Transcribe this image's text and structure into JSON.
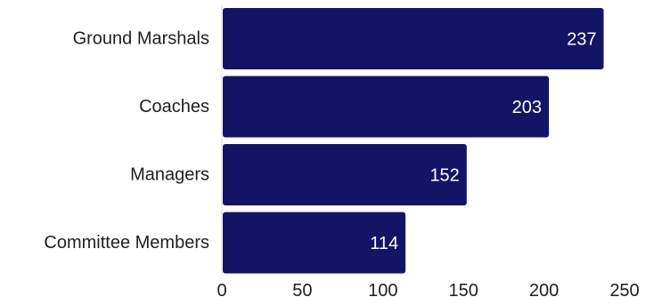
{
  "chart_data": {
    "type": "bar",
    "orientation": "horizontal",
    "categories": [
      "Ground Marshals",
      "Coaches",
      "Managers",
      "Committee Members"
    ],
    "values": [
      237,
      203,
      152,
      114
    ],
    "xlim": [
      0,
      250
    ],
    "x_ticks": [
      0,
      50,
      100,
      150,
      200,
      250
    ],
    "bar_color": "#141466",
    "value_label_color": "#ffffff",
    "grid": false,
    "legend": "none"
  }
}
